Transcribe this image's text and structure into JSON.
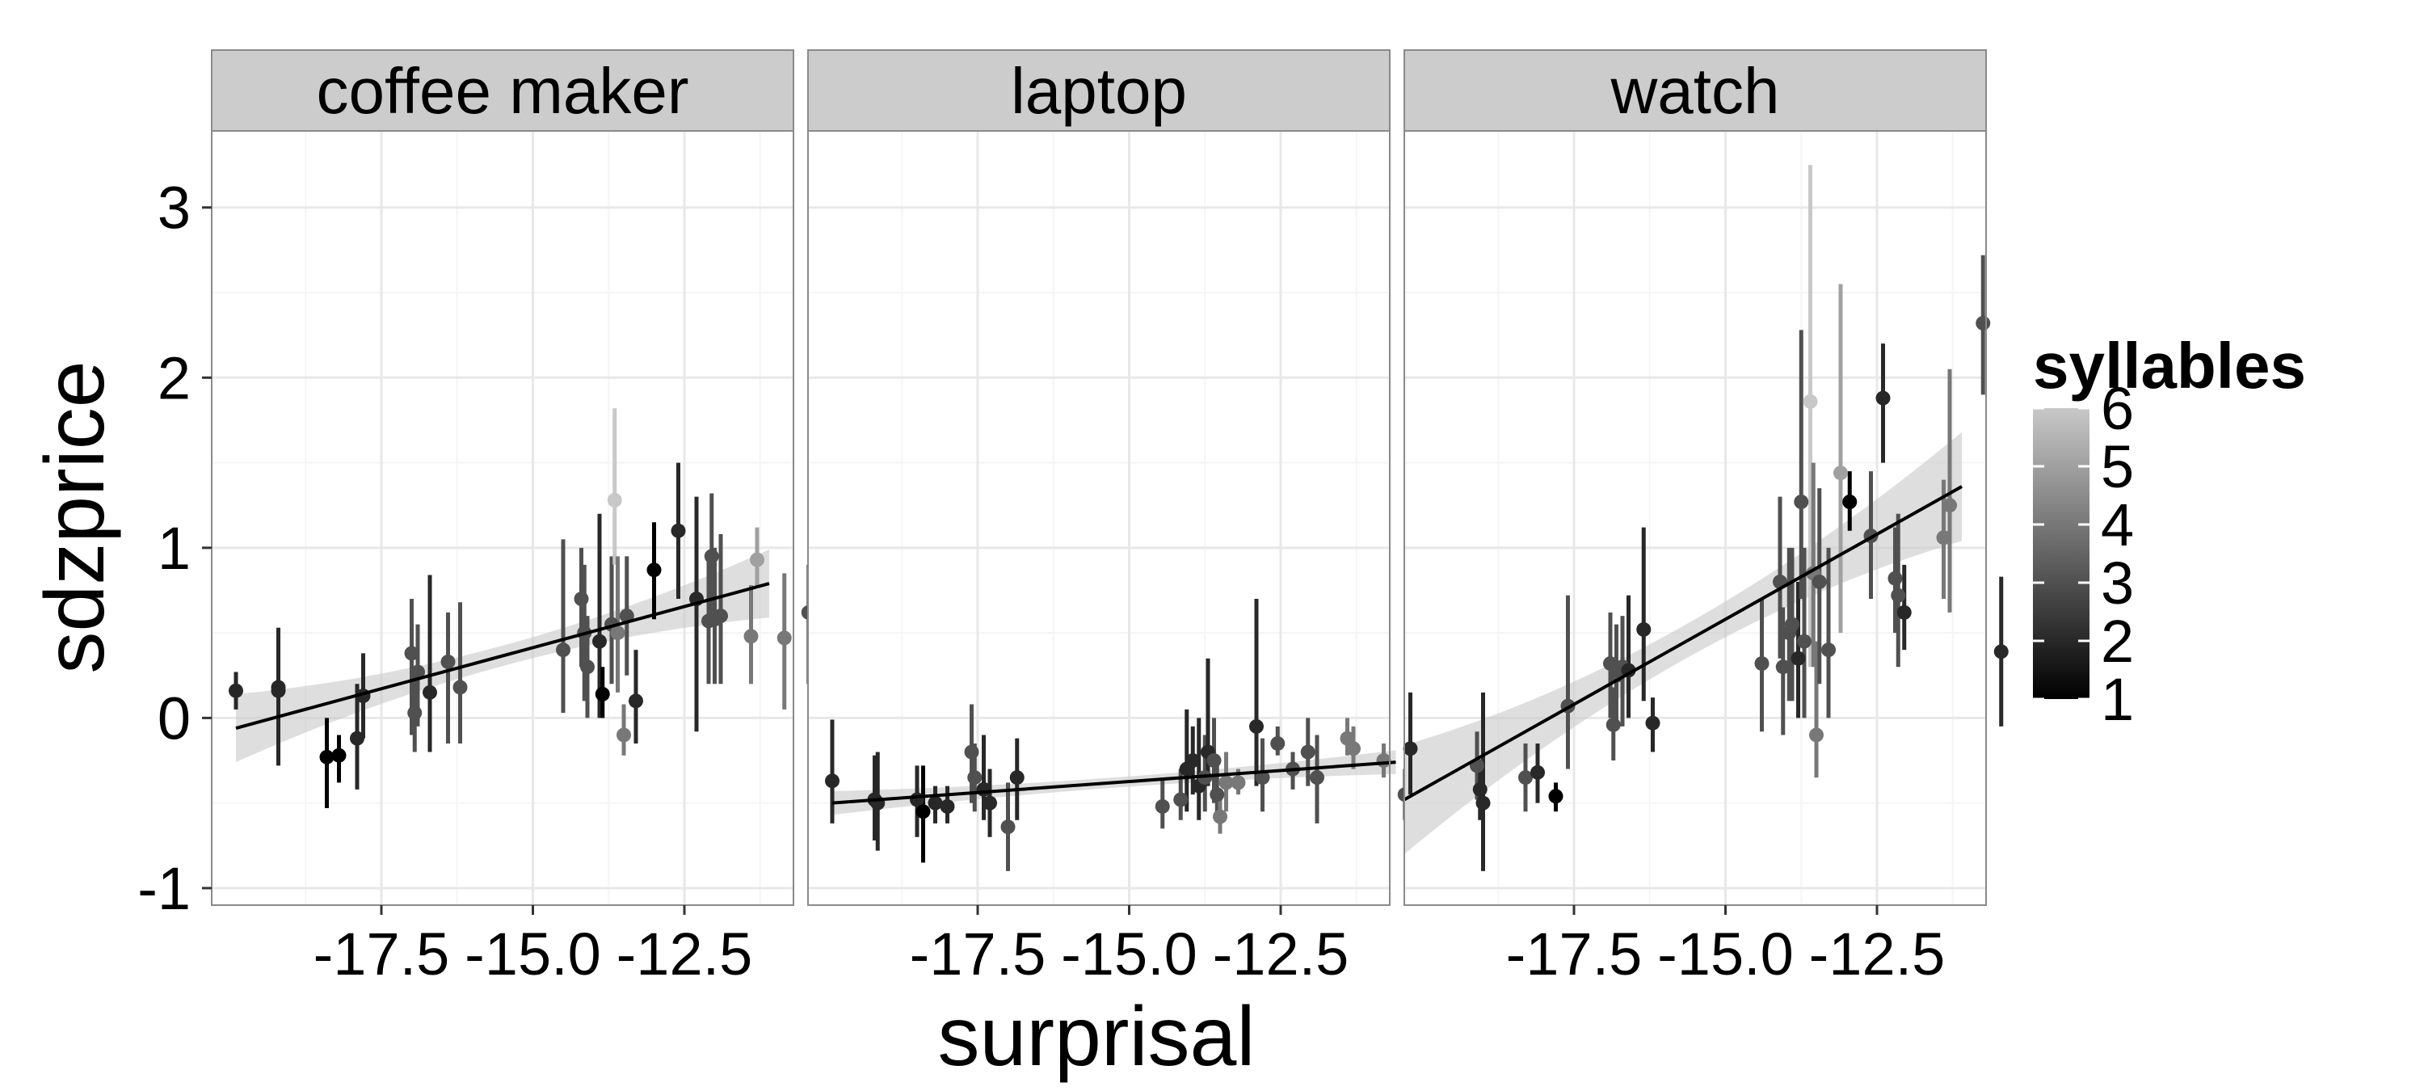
{
  "chart_data": {
    "type": "scatter",
    "xlabel": "surprisal",
    "ylabel": "sdzprice",
    "xlim": [
      -20.3,
      -10.7
    ],
    "ylim": [
      -1.1,
      3.45
    ],
    "x_ticks": [
      -17.5,
      -15.0,
      -12.5
    ],
    "x_tick_labels": [
      "-17.5",
      "-15.0",
      "-12.5"
    ],
    "y_ticks": [
      -1,
      0,
      1,
      2,
      3
    ],
    "y_tick_labels": [
      "-1",
      "0",
      "1",
      "2",
      "3"
    ],
    "grid": true,
    "legend": {
      "title": "syllables",
      "position": "right",
      "range": [
        1,
        6
      ],
      "ticks": [
        1,
        2,
        3,
        4,
        5,
        6
      ],
      "tick_labels": [
        "1",
        "2",
        "3",
        "4",
        "5",
        "6"
      ],
      "low_color": "#000000",
      "high_color": "#c8c8c8"
    },
    "panels": [
      {
        "label": "coffee maker",
        "fit": {
          "x": [
            -19.9,
            -11.1
          ],
          "y": [
            -0.06,
            0.79
          ],
          "band_halfwidth_ends": 0.2,
          "band_halfwidth_mid": 0.06
        },
        "points": [
          {
            "x": -19.9,
            "y": 0.16,
            "lo": 0.05,
            "hi": 0.27,
            "s": 2
          },
          {
            "x": -19.2,
            "y": 0.18,
            "lo": -0.28,
            "hi": 0.53,
            "s": 2
          },
          {
            "x": -19.2,
            "y": 0.16,
            "lo": -0.16,
            "hi": 0.41,
            "s": 2
          },
          {
            "x": -18.4,
            "y": -0.23,
            "lo": -0.53,
            "hi": 0.0,
            "s": 1
          },
          {
            "x": -18.2,
            "y": -0.22,
            "lo": -0.38,
            "hi": -0.1,
            "s": 1
          },
          {
            "x": -17.9,
            "y": -0.12,
            "lo": -0.42,
            "hi": 0.2,
            "s": 2
          },
          {
            "x": -17.8,
            "y": 0.13,
            "lo": -0.12,
            "hi": 0.38,
            "s": 2
          },
          {
            "x": -17.0,
            "y": 0.38,
            "lo": -0.1,
            "hi": 0.7,
            "s": 3
          },
          {
            "x": -16.95,
            "y": 0.03,
            "lo": -0.2,
            "hi": 0.3,
            "s": 3
          },
          {
            "x": -16.9,
            "y": 0.27,
            "lo": -0.05,
            "hi": 0.55,
            "s": 3
          },
          {
            "x": -16.7,
            "y": 0.15,
            "lo": -0.2,
            "hi": 0.84,
            "s": 2
          },
          {
            "x": -16.4,
            "y": 0.33,
            "lo": -0.15,
            "hi": 0.62,
            "s": 3
          },
          {
            "x": -16.2,
            "y": 0.18,
            "lo": -0.15,
            "hi": 0.68,
            "s": 3
          },
          {
            "x": -14.5,
            "y": 0.4,
            "lo": 0.03,
            "hi": 1.05,
            "s": 3
          },
          {
            "x": -14.2,
            "y": 0.7,
            "lo": 0.3,
            "hi": 1.0,
            "s": 3
          },
          {
            "x": -14.15,
            "y": 0.5,
            "lo": 0.1,
            "hi": 0.9,
            "s": 3
          },
          {
            "x": -14.1,
            "y": 0.3,
            "lo": 0.0,
            "hi": 0.6,
            "s": 3
          },
          {
            "x": -13.9,
            "y": 0.45,
            "lo": 0.0,
            "hi": 1.2,
            "s": 2
          },
          {
            "x": -13.85,
            "y": 0.14,
            "lo": 0.0,
            "hi": 0.3,
            "s": 1
          },
          {
            "x": -13.7,
            "y": 0.55,
            "lo": 0.2,
            "hi": 0.95,
            "s": 3
          },
          {
            "x": -13.65,
            "y": 1.28,
            "lo": 0.9,
            "hi": 1.82,
            "s": 6
          },
          {
            "x": -13.6,
            "y": 0.5,
            "lo": 0.15,
            "hi": 0.95,
            "s": 4
          },
          {
            "x": -13.5,
            "y": -0.1,
            "lo": -0.22,
            "hi": 0.08,
            "s": 4
          },
          {
            "x": -13.45,
            "y": 0.6,
            "lo": 0.25,
            "hi": 0.95,
            "s": 3
          },
          {
            "x": -13.3,
            "y": 0.1,
            "lo": -0.15,
            "hi": 0.4,
            "s": 2
          },
          {
            "x": -13.0,
            "y": 0.87,
            "lo": 0.58,
            "hi": 1.15,
            "s": 1
          },
          {
            "x": -12.6,
            "y": 1.1,
            "lo": 0.7,
            "hi": 1.5,
            "s": 2
          },
          {
            "x": -12.3,
            "y": 0.7,
            "lo": -0.08,
            "hi": 1.3,
            "s": 2
          },
          {
            "x": -12.1,
            "y": 0.57,
            "lo": 0.2,
            "hi": 0.95,
            "s": 3
          },
          {
            "x": -12.05,
            "y": 0.95,
            "lo": 0.6,
            "hi": 1.32,
            "s": 3
          },
          {
            "x": -12.0,
            "y": 0.58,
            "lo": 0.2,
            "hi": 1.0,
            "s": 3
          },
          {
            "x": -11.9,
            "y": 0.6,
            "lo": 0.2,
            "hi": 1.08,
            "s": 3
          },
          {
            "x": -11.4,
            "y": 0.48,
            "lo": 0.2,
            "hi": 0.78,
            "s": 4
          },
          {
            "x": -11.3,
            "y": 0.93,
            "lo": 0.77,
            "hi": 1.12,
            "s": 5
          },
          {
            "x": -10.85,
            "y": 0.47,
            "lo": 0.05,
            "hi": 0.85,
            "s": 4
          },
          {
            "x": -10.45,
            "y": 0.62,
            "lo": 0.2,
            "hi": 0.9,
            "s": 3
          }
        ]
      },
      {
        "label": "laptop",
        "fit": {
          "x": [
            -19.9,
            -10.6
          ],
          "y": [
            -0.5,
            -0.26
          ],
          "band_halfwidth_ends": 0.07,
          "band_halfwidth_mid": 0.03
        },
        "points": [
          {
            "x": -19.9,
            "y": -0.37,
            "lo": -0.62,
            "hi": -0.01,
            "s": 2
          },
          {
            "x": -19.2,
            "y": -0.48,
            "lo": -0.72,
            "hi": -0.22,
            "s": 2
          },
          {
            "x": -19.15,
            "y": -0.5,
            "lo": -0.78,
            "hi": -0.2,
            "s": 2
          },
          {
            "x": -18.5,
            "y": -0.48,
            "lo": -0.7,
            "hi": -0.28,
            "s": 2
          },
          {
            "x": -18.4,
            "y": -0.55,
            "lo": -0.85,
            "hi": -0.28,
            "s": 1
          },
          {
            "x": -18.2,
            "y": -0.5,
            "lo": -0.62,
            "hi": -0.4,
            "s": 2
          },
          {
            "x": -18.0,
            "y": -0.52,
            "lo": -0.62,
            "hi": -0.4,
            "s": 2
          },
          {
            "x": -17.6,
            "y": -0.2,
            "lo": -0.5,
            "hi": 0.08,
            "s": 3
          },
          {
            "x": -17.55,
            "y": -0.35,
            "lo": -0.55,
            "hi": -0.15,
            "s": 3
          },
          {
            "x": -17.4,
            "y": -0.42,
            "lo": -0.6,
            "hi": -0.1,
            "s": 2
          },
          {
            "x": -17.3,
            "y": -0.5,
            "lo": -0.7,
            "hi": -0.3,
            "s": 2
          },
          {
            "x": -17.0,
            "y": -0.64,
            "lo": -0.9,
            "hi": -0.38,
            "s": 3
          },
          {
            "x": -16.85,
            "y": -0.35,
            "lo": -0.6,
            "hi": -0.12,
            "s": 2
          },
          {
            "x": -14.45,
            "y": -0.52,
            "lo": -0.65,
            "hi": -0.35,
            "s": 3
          },
          {
            "x": -14.15,
            "y": -0.48,
            "lo": -0.6,
            "hi": -0.3,
            "s": 3
          },
          {
            "x": -14.05,
            "y": -0.3,
            "lo": -0.55,
            "hi": 0.05,
            "s": 2
          },
          {
            "x": -13.95,
            "y": -0.25,
            "lo": -0.45,
            "hi": -0.05,
            "s": 2
          },
          {
            "x": -13.85,
            "y": -0.4,
            "lo": -0.6,
            "hi": 0.0,
            "s": 2
          },
          {
            "x": -13.75,
            "y": -0.35,
            "lo": -0.55,
            "hi": -0.1,
            "s": 3
          },
          {
            "x": -13.7,
            "y": -0.2,
            "lo": -0.4,
            "hi": 0.35,
            "s": 2
          },
          {
            "x": -13.6,
            "y": -0.25,
            "lo": -0.5,
            "hi": 0.0,
            "s": 3
          },
          {
            "x": -13.55,
            "y": -0.45,
            "lo": -0.6,
            "hi": -0.28,
            "s": 3
          },
          {
            "x": -13.5,
            "y": -0.58,
            "lo": -0.68,
            "hi": -0.45,
            "s": 4
          },
          {
            "x": -13.4,
            "y": -0.38,
            "lo": -0.55,
            "hi": -0.2,
            "s": 4
          },
          {
            "x": -13.2,
            "y": -0.38,
            "lo": -0.45,
            "hi": -0.3,
            "s": 4
          },
          {
            "x": -12.9,
            "y": -0.05,
            "lo": -0.4,
            "hi": 0.7,
            "s": 2
          },
          {
            "x": -12.8,
            "y": -0.35,
            "lo": -0.55,
            "hi": -0.12,
            "s": 3
          },
          {
            "x": -12.55,
            "y": -0.15,
            "lo": -0.22,
            "hi": -0.05,
            "s": 3
          },
          {
            "x": -12.3,
            "y": -0.3,
            "lo": -0.42,
            "hi": -0.2,
            "s": 3
          },
          {
            "x": -12.05,
            "y": -0.2,
            "lo": -0.4,
            "hi": 0.0,
            "s": 3
          },
          {
            "x": -11.9,
            "y": -0.35,
            "lo": -0.62,
            "hi": -0.1,
            "s": 3
          },
          {
            "x": -11.4,
            "y": -0.12,
            "lo": -0.22,
            "hi": 0.0,
            "s": 4
          },
          {
            "x": -11.3,
            "y": -0.18,
            "lo": -0.3,
            "hi": -0.05,
            "s": 4
          },
          {
            "x": -10.8,
            "y": -0.25,
            "lo": -0.35,
            "hi": -0.15,
            "s": 4
          },
          {
            "x": -10.45,
            "y": -0.45,
            "lo": -0.6,
            "hi": -0.3,
            "s": 3
          }
        ]
      },
      {
        "label": "watch",
        "fit": {
          "x": [
            -20.3,
            -11.1
          ],
          "y": [
            -0.48,
            1.36
          ],
          "band_halfwidth_ends": 0.32,
          "band_halfwidth_mid": 0.1
        },
        "points": [
          {
            "x": -20.2,
            "y": -0.18,
            "lo": -0.45,
            "hi": 0.15,
            "s": 2
          },
          {
            "x": -19.1,
            "y": -0.28,
            "lo": -0.48,
            "hi": -0.08,
            "s": 3
          },
          {
            "x": -19.05,
            "y": -0.42,
            "lo": -0.6,
            "hi": -0.25,
            "s": 2
          },
          {
            "x": -19.0,
            "y": -0.5,
            "lo": -0.9,
            "hi": 0.15,
            "s": 2
          },
          {
            "x": -18.3,
            "y": -0.35,
            "lo": -0.55,
            "hi": -0.15,
            "s": 3
          },
          {
            "x": -18.1,
            "y": -0.32,
            "lo": -0.5,
            "hi": -0.15,
            "s": 2
          },
          {
            "x": -17.8,
            "y": -0.46,
            "lo": -0.55,
            "hi": -0.38,
            "s": 1
          },
          {
            "x": -17.6,
            "y": 0.07,
            "lo": -0.3,
            "hi": 0.72,
            "s": 3
          },
          {
            "x": -16.9,
            "y": 0.32,
            "lo": 0.0,
            "hi": 0.62,
            "s": 3
          },
          {
            "x": -16.85,
            "y": -0.04,
            "lo": -0.25,
            "hi": 0.18,
            "s": 3
          },
          {
            "x": -16.8,
            "y": 0.25,
            "lo": -0.05,
            "hi": 0.55,
            "s": 3
          },
          {
            "x": -16.7,
            "y": 0.3,
            "lo": -0.05,
            "hi": 0.6,
            "s": 3
          },
          {
            "x": -16.6,
            "y": 0.28,
            "lo": 0.0,
            "hi": 0.72,
            "s": 2
          },
          {
            "x": -16.35,
            "y": 0.52,
            "lo": 0.1,
            "hi": 1.12,
            "s": 2
          },
          {
            "x": -16.2,
            "y": -0.03,
            "lo": -0.2,
            "hi": 0.12,
            "s": 2
          },
          {
            "x": -14.4,
            "y": 0.32,
            "lo": -0.08,
            "hi": 0.7,
            "s": 3
          },
          {
            "x": -14.1,
            "y": 0.8,
            "lo": 0.35,
            "hi": 1.3,
            "s": 3
          },
          {
            "x": -14.05,
            "y": 0.3,
            "lo": -0.1,
            "hi": 0.65,
            "s": 3
          },
          {
            "x": -13.95,
            "y": 0.5,
            "lo": 0.1,
            "hi": 1.0,
            "s": 3
          },
          {
            "x": -13.9,
            "y": 0.55,
            "lo": 0.1,
            "hi": 1.0,
            "s": 3
          },
          {
            "x": -13.8,
            "y": 0.35,
            "lo": 0.0,
            "hi": 0.8,
            "s": 2
          },
          {
            "x": -13.75,
            "y": 1.27,
            "lo": 0.7,
            "hi": 2.28,
            "s": 3
          },
          {
            "x": -13.7,
            "y": 0.45,
            "lo": 0.0,
            "hi": 1.0,
            "s": 3
          },
          {
            "x": -13.6,
            "y": 1.86,
            "lo": 0.3,
            "hi": 3.25,
            "s": 6
          },
          {
            "x": -13.55,
            "y": 0.85,
            "lo": 0.3,
            "hi": 1.5,
            "s": 4
          },
          {
            "x": -13.5,
            "y": -0.1,
            "lo": -0.35,
            "hi": 0.45,
            "s": 4
          },
          {
            "x": -13.45,
            "y": 0.8,
            "lo": 0.2,
            "hi": 1.35,
            "s": 3
          },
          {
            "x": -13.3,
            "y": 0.4,
            "lo": 0.0,
            "hi": 1.0,
            "s": 3
          },
          {
            "x": -13.1,
            "y": 1.44,
            "lo": 0.5,
            "hi": 2.55,
            "s": 5
          },
          {
            "x": -12.95,
            "y": 1.27,
            "lo": 1.1,
            "hi": 1.45,
            "s": 1
          },
          {
            "x": -12.6,
            "y": 1.07,
            "lo": 0.7,
            "hi": 1.45,
            "s": 3
          },
          {
            "x": -12.4,
            "y": 1.88,
            "lo": 1.5,
            "hi": 2.2,
            "s": 2
          },
          {
            "x": -12.2,
            "y": 0.82,
            "lo": 0.5,
            "hi": 1.12,
            "s": 3
          },
          {
            "x": -12.15,
            "y": 0.72,
            "lo": 0.3,
            "hi": 1.2,
            "s": 3
          },
          {
            "x": -12.05,
            "y": 0.62,
            "lo": 0.4,
            "hi": 0.9,
            "s": 2
          },
          {
            "x": -11.4,
            "y": 1.06,
            "lo": 0.7,
            "hi": 1.4,
            "s": 4
          },
          {
            "x": -11.3,
            "y": 1.25,
            "lo": 0.62,
            "hi": 2.05,
            "s": 4
          },
          {
            "x": -10.75,
            "y": 2.32,
            "lo": 1.9,
            "hi": 2.72,
            "s": 3
          },
          {
            "x": -10.45,
            "y": 0.39,
            "lo": -0.05,
            "hi": 0.83,
            "s": 2
          }
        ]
      }
    ]
  }
}
